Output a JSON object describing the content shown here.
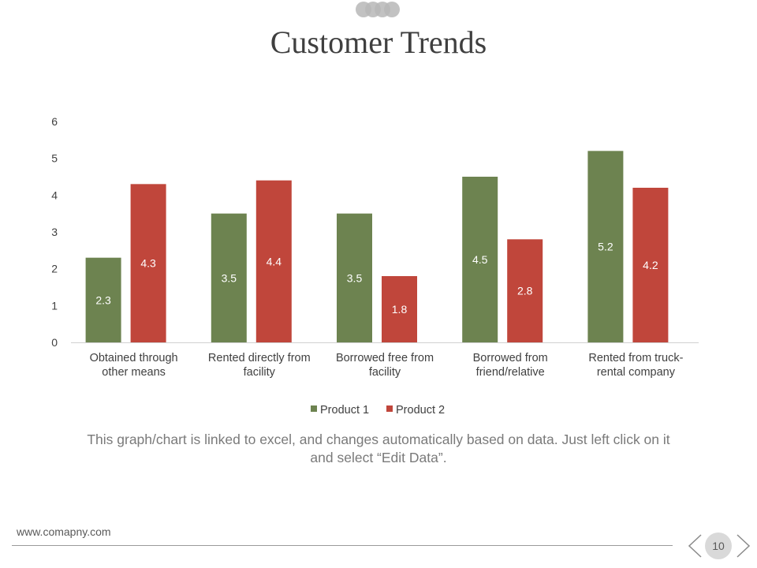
{
  "slide": {
    "title": "Customer Trends",
    "caption": "This graph/chart is linked to excel, and changes automatically based on data. Just left click on it and select “Edit Data”.",
    "website": "www.comapny.com",
    "page_number": "10"
  },
  "colors": {
    "product1": "#6d8350",
    "product2": "#c0463b",
    "axis": "#d0d0d0",
    "tick_text": "#404040",
    "data_label": "#ffffff"
  },
  "chart_data": {
    "type": "bar",
    "title": "",
    "xlabel": "",
    "ylabel": "",
    "ylim": [
      0,
      6
    ],
    "yticks": [
      0,
      1,
      2,
      3,
      4,
      5,
      6
    ],
    "grid": false,
    "legend": "bottom",
    "categories": [
      [
        "Obtained through",
        "other means"
      ],
      [
        "Rented directly from",
        "facility"
      ],
      [
        "Borrowed free from",
        "facility"
      ],
      [
        "Borrowed  from",
        "friend/relative"
      ],
      [
        "Rented from truck-",
        "rental company"
      ]
    ],
    "series": [
      {
        "name": "Product 1",
        "values": [
          2.3,
          3.5,
          3.5,
          4.5,
          5.2
        ]
      },
      {
        "name": "Product  2",
        "values": [
          4.3,
          4.4,
          1.8,
          2.8,
          4.2
        ]
      }
    ]
  }
}
